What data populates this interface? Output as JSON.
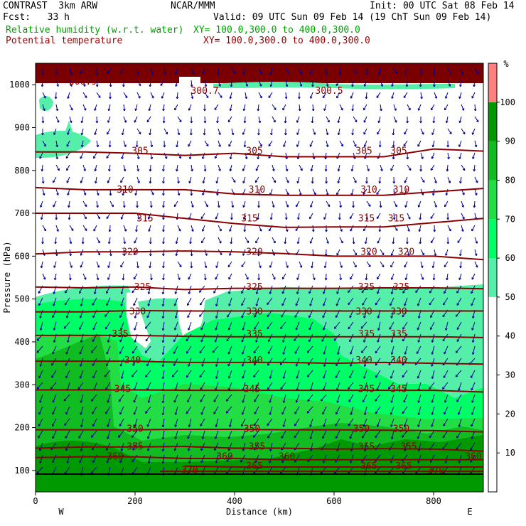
{
  "header": {
    "model": "CONTRAST  3km ARW",
    "institution": "NCAR/MMM",
    "init": "Init: 00 UTC Sat 08 Feb 14",
    "fcst": "Fcst:   33 h",
    "valid": "Valid: 09 UTC Sun 09 Feb 14 (19 ChT Sun 09 Feb 14)",
    "field1": "Relative humidity (w.r.t. water)",
    "field1_xy": "XY= 100.0,300.0 to 400.0,300.0",
    "field2": "Potential temperature",
    "field2_xy": "XY= 100.0,300.0 to 400.0,300.0"
  },
  "colors": {
    "rh_50_60": "#55efaa",
    "rh_60_70": "#00ff66",
    "rh_70_80": "#22dd44",
    "rh_80_90": "#11bb22",
    "rh_90_100": "#009900",
    "rh_over_100": "#ff8080",
    "theta_line": "#8b0000",
    "wind_vector": "#000090",
    "upper_band": "#7a0000"
  },
  "chart_data": {
    "type": "heatmap",
    "xlabel": "Distance (km)",
    "ylabel": "Pressure (hPa)",
    "xlim": [
      0,
      900
    ],
    "ylim": [
      1050,
      50
    ],
    "x_ticks": [
      "0",
      "200",
      "400",
      "600",
      "800"
    ],
    "y_ticks": [
      "100",
      "200",
      "300",
      "400",
      "500",
      "600",
      "700",
      "800",
      "900",
      "1000"
    ],
    "x_end_labels": {
      "left": "W",
      "right": "E"
    },
    "colorbar": {
      "unit": "%",
      "labels": [
        "10",
        "20",
        "30",
        "40",
        "50",
        "60",
        "70",
        "80",
        "90",
        "100"
      ],
      "fills": [
        {
          "from": 0,
          "to": 50,
          "color": "#ffffff"
        },
        {
          "from": 50,
          "to": 60,
          "color": "#55efaa"
        },
        {
          "from": 60,
          "to": 70,
          "color": "#00ff66"
        },
        {
          "from": 70,
          "to": 80,
          "color": "#22dd44"
        },
        {
          "from": 80,
          "to": 90,
          "color": "#11bb22"
        },
        {
          "from": 90,
          "to": 100,
          "color": "#009900"
        },
        {
          "from": 100,
          "to": 110,
          "color": "#ff8080"
        }
      ]
    },
    "isentropes": [
      {
        "theta": "305",
        "points": [
          [
            0,
            843
          ],
          [
            100,
            843
          ],
          [
            200,
            840
          ],
          [
            300,
            835
          ],
          [
            400,
            840
          ],
          [
            500,
            832
          ],
          [
            600,
            832
          ],
          [
            700,
            832
          ],
          [
            800,
            850
          ],
          [
            900,
            845
          ]
        ],
        "labels": [
          [
            210,
            "305"
          ],
          [
            440,
            "305"
          ],
          [
            660,
            "305"
          ],
          [
            730,
            "305"
          ]
        ]
      },
      {
        "theta": "310",
        "points": [
          [
            0,
            760
          ],
          [
            100,
            755
          ],
          [
            200,
            755
          ],
          [
            300,
            755
          ],
          [
            400,
            745
          ],
          [
            500,
            742
          ],
          [
            600,
            742
          ],
          [
            700,
            742
          ],
          [
            800,
            750
          ],
          [
            900,
            758
          ]
        ],
        "labels": [
          [
            180,
            "310"
          ],
          [
            445,
            "310"
          ],
          [
            670,
            "310"
          ],
          [
            735,
            "310"
          ]
        ]
      },
      {
        "theta": "315",
        "points": [
          [
            0,
            700
          ],
          [
            100,
            700
          ],
          [
            200,
            700
          ],
          [
            300,
            688
          ],
          [
            400,
            676
          ],
          [
            500,
            667
          ],
          [
            600,
            668
          ],
          [
            700,
            668
          ],
          [
            800,
            678
          ],
          [
            900,
            688
          ]
        ],
        "labels": [
          [
            220,
            "315"
          ],
          [
            430,
            "315"
          ],
          [
            665,
            "315"
          ],
          [
            725,
            "315"
          ]
        ]
      },
      {
        "theta": "320",
        "points": [
          [
            0,
            605
          ],
          [
            100,
            610
          ],
          [
            200,
            610
          ],
          [
            300,
            612
          ],
          [
            400,
            610
          ],
          [
            500,
            606
          ],
          [
            600,
            600
          ],
          [
            700,
            600
          ],
          [
            800,
            600
          ],
          [
            900,
            592
          ]
        ],
        "labels": [
          [
            190,
            "320"
          ],
          [
            440,
            "320"
          ],
          [
            670,
            "320"
          ],
          [
            745,
            "320"
          ]
        ]
      },
      {
        "theta": "325",
        "points": [
          [
            0,
            528
          ],
          [
            100,
            526
          ],
          [
            200,
            528
          ],
          [
            300,
            522
          ],
          [
            400,
            525
          ],
          [
            500,
            525
          ],
          [
            600,
            525
          ],
          [
            700,
            526
          ],
          [
            800,
            526
          ],
          [
            900,
            524
          ]
        ],
        "labels": [
          [
            215,
            "325"
          ],
          [
            440,
            "325"
          ],
          [
            665,
            "325"
          ],
          [
            735,
            "325"
          ]
        ]
      },
      {
        "theta": "330",
        "points": [
          [
            0,
            470
          ],
          [
            100,
            470
          ],
          [
            200,
            473
          ],
          [
            300,
            472
          ],
          [
            400,
            472
          ],
          [
            500,
            472
          ],
          [
            600,
            472
          ],
          [
            700,
            472
          ],
          [
            800,
            472
          ],
          [
            900,
            472
          ]
        ],
        "labels": [
          [
            205,
            "330"
          ],
          [
            440,
            "330"
          ],
          [
            660,
            "330"
          ],
          [
            730,
            "330"
          ]
        ]
      },
      {
        "theta": "335",
        "points": [
          [
            0,
            415
          ],
          [
            100,
            415
          ],
          [
            200,
            415
          ],
          [
            300,
            413
          ],
          [
            400,
            412
          ],
          [
            500,
            412
          ],
          [
            600,
            412
          ],
          [
            700,
            412
          ],
          [
            800,
            412
          ],
          [
            900,
            410
          ]
        ],
        "labels": [
          [
            170,
            "335"
          ],
          [
            440,
            "335"
          ],
          [
            665,
            "335"
          ],
          [
            730,
            "335"
          ]
        ]
      },
      {
        "theta": "340",
        "points": [
          [
            0,
            355
          ],
          [
            100,
            355
          ],
          [
            200,
            355
          ],
          [
            300,
            352
          ],
          [
            400,
            352
          ],
          [
            500,
            352
          ],
          [
            600,
            350
          ],
          [
            700,
            352
          ],
          [
            800,
            350
          ],
          [
            900,
            348
          ]
        ],
        "labels": [
          [
            195,
            "340"
          ],
          [
            440,
            "340"
          ],
          [
            660,
            "340"
          ],
          [
            730,
            "340"
          ]
        ]
      },
      {
        "theta": "345",
        "points": [
          [
            0,
            288
          ],
          [
            100,
            288
          ],
          [
            200,
            288
          ],
          [
            300,
            287
          ],
          [
            400,
            287
          ],
          [
            500,
            287
          ],
          [
            600,
            287
          ],
          [
            700,
            287
          ],
          [
            800,
            287
          ],
          [
            900,
            283
          ]
        ],
        "labels": [
          [
            175,
            "345"
          ],
          [
            435,
            "345"
          ],
          [
            665,
            "345"
          ],
          [
            730,
            "345"
          ]
        ]
      },
      {
        "theta": "350",
        "points": [
          [
            0,
            195
          ],
          [
            100,
            195
          ],
          [
            200,
            195
          ],
          [
            300,
            196
          ],
          [
            400,
            196
          ],
          [
            500,
            195
          ],
          [
            600,
            195
          ],
          [
            700,
            194
          ],
          [
            800,
            193
          ],
          [
            900,
            190
          ]
        ],
        "labels": [
          [
            200,
            "350"
          ],
          [
            435,
            "350"
          ],
          [
            655,
            "350"
          ],
          [
            735,
            "350"
          ]
        ]
      },
      {
        "theta": "355",
        "points": [
          [
            0,
            152
          ],
          [
            100,
            155
          ],
          [
            200,
            155
          ],
          [
            300,
            156
          ],
          [
            400,
            152
          ],
          [
            500,
            152
          ],
          [
            600,
            150
          ],
          [
            700,
            151
          ],
          [
            800,
            150
          ],
          [
            900,
            145
          ]
        ],
        "labels": [
          [
            200,
            "355"
          ],
          [
            445,
            "355"
          ],
          [
            665,
            "355"
          ],
          [
            750,
            "355"
          ]
        ]
      },
      {
        "theta": "360",
        "points": [
          [
            0,
            130
          ],
          [
            100,
            132
          ],
          [
            200,
            132
          ],
          [
            300,
            128
          ],
          [
            400,
            128
          ],
          [
            500,
            125
          ],
          [
            600,
            125
          ],
          [
            700,
            125
          ],
          [
            800,
            125
          ],
          [
            900,
            125
          ]
        ],
        "labels": [
          [
            160,
            "360"
          ],
          [
            380,
            "360"
          ],
          [
            505,
            "360"
          ],
          [
            880,
            "360"
          ]
        ]
      },
      {
        "theta": "365",
        "points": [
          [
            300,
            110
          ],
          [
            400,
            108
          ],
          [
            500,
            108
          ],
          [
            600,
            108
          ],
          [
            700,
            108
          ],
          [
            800,
            108
          ],
          [
            900,
            108
          ]
        ],
        "labels": [
          [
            440,
            "365"
          ],
          [
            670,
            "365"
          ],
          [
            740,
            "365"
          ]
        ]
      },
      {
        "theta": "370",
        "points": [
          [
            250,
            98
          ],
          [
            400,
            98
          ],
          [
            600,
            98
          ],
          [
            900,
            98
          ]
        ],
        "labels": [
          [
            310,
            "370"
          ],
          [
            805,
            "370"
          ]
        ]
      },
      {
        "theta": "300.9",
        "points": [],
        "labels": [
          [
            95,
            "300.9"
          ]
        ]
      },
      {
        "theta": "300.7",
        "points": [],
        "labels": [
          [
            340,
            "300.7"
          ]
        ]
      },
      {
        "theta": "300.5",
        "points": [],
        "labels": [
          [
            590,
            "300.5"
          ]
        ]
      }
    ],
    "isentrope_label_pressure": {
      "305": 845,
      "310": 755,
      "315": 688,
      "320": 610,
      "325": 528,
      "330": 470,
      "335": 418,
      "340": 357,
      "345": 290,
      "350": 197,
      "355": 155,
      "360": 132,
      "365": 110,
      "370": 100,
      "300.9": 1007,
      "300.7": 985,
      "300.5": 985
    },
    "grid": false,
    "legend": "colorbar-right"
  }
}
